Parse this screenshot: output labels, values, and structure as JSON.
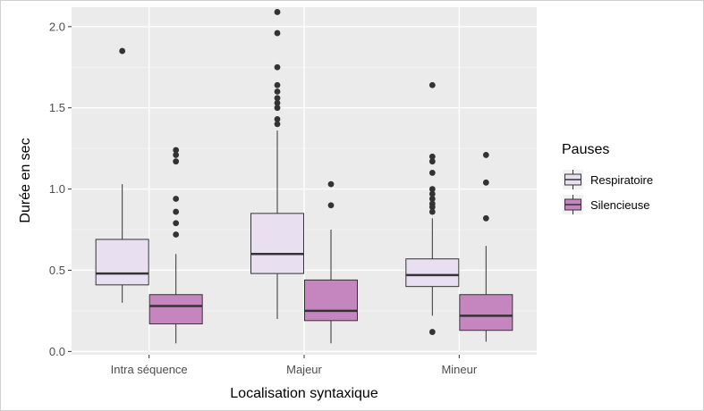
{
  "chart_data": {
    "type": "boxplot",
    "title": "",
    "xlabel": "Localisation syntaxique",
    "ylabel": "Durée en sec",
    "ylim": [
      -0.02,
      2.12
    ],
    "yticks": [
      0.0,
      0.5,
      1.0,
      1.5,
      2.0
    ],
    "ytick_labels": [
      "0.0",
      "0.5",
      "1.0",
      "1.5",
      "2.0"
    ],
    "grid": true,
    "categories": [
      "Intra séquence",
      "Majeur",
      "Mineur"
    ],
    "legend": {
      "title": "Pauses",
      "position": "right"
    },
    "series": [
      {
        "name": "Respiratoire",
        "color": "#e8dff0",
        "boxes": [
          {
            "category": "Intra séquence",
            "whisker_low": 0.3,
            "q1": 0.41,
            "median": 0.48,
            "q3": 0.69,
            "whisker_high": 1.03,
            "outliers": [
              1.85
            ]
          },
          {
            "category": "Majeur",
            "whisker_low": 0.2,
            "q1": 0.48,
            "median": 0.6,
            "q3": 0.85,
            "whisker_high": 1.36,
            "outliers": [
              1.4,
              1.43,
              1.5,
              1.53,
              1.56,
              1.6,
              1.64,
              1.75,
              1.96,
              2.09
            ]
          },
          {
            "category": "Mineur",
            "whisker_low": 0.22,
            "q1": 0.4,
            "median": 0.47,
            "q3": 0.57,
            "whisker_high": 0.82,
            "outliers": [
              0.12,
              0.86,
              0.89,
              0.91,
              0.94,
              0.97,
              1.0,
              1.1,
              1.17,
              1.2,
              1.64
            ]
          }
        ]
      },
      {
        "name": "Silencieuse",
        "color": "#c586c0",
        "boxes": [
          {
            "category": "Intra séquence",
            "whisker_low": 0.05,
            "q1": 0.17,
            "median": 0.28,
            "q3": 0.35,
            "whisker_high": 0.6,
            "outliers": [
              0.72,
              0.79,
              0.86,
              0.94,
              1.17,
              1.21,
              1.24
            ]
          },
          {
            "category": "Majeur",
            "whisker_low": 0.05,
            "q1": 0.19,
            "median": 0.25,
            "q3": 0.44,
            "whisker_high": 0.75,
            "outliers": [
              0.9,
              1.03
            ]
          },
          {
            "category": "Mineur",
            "whisker_low": 0.06,
            "q1": 0.13,
            "median": 0.22,
            "q3": 0.35,
            "whisker_high": 0.65,
            "outliers": [
              0.82,
              1.04,
              1.21
            ]
          }
        ]
      }
    ]
  }
}
